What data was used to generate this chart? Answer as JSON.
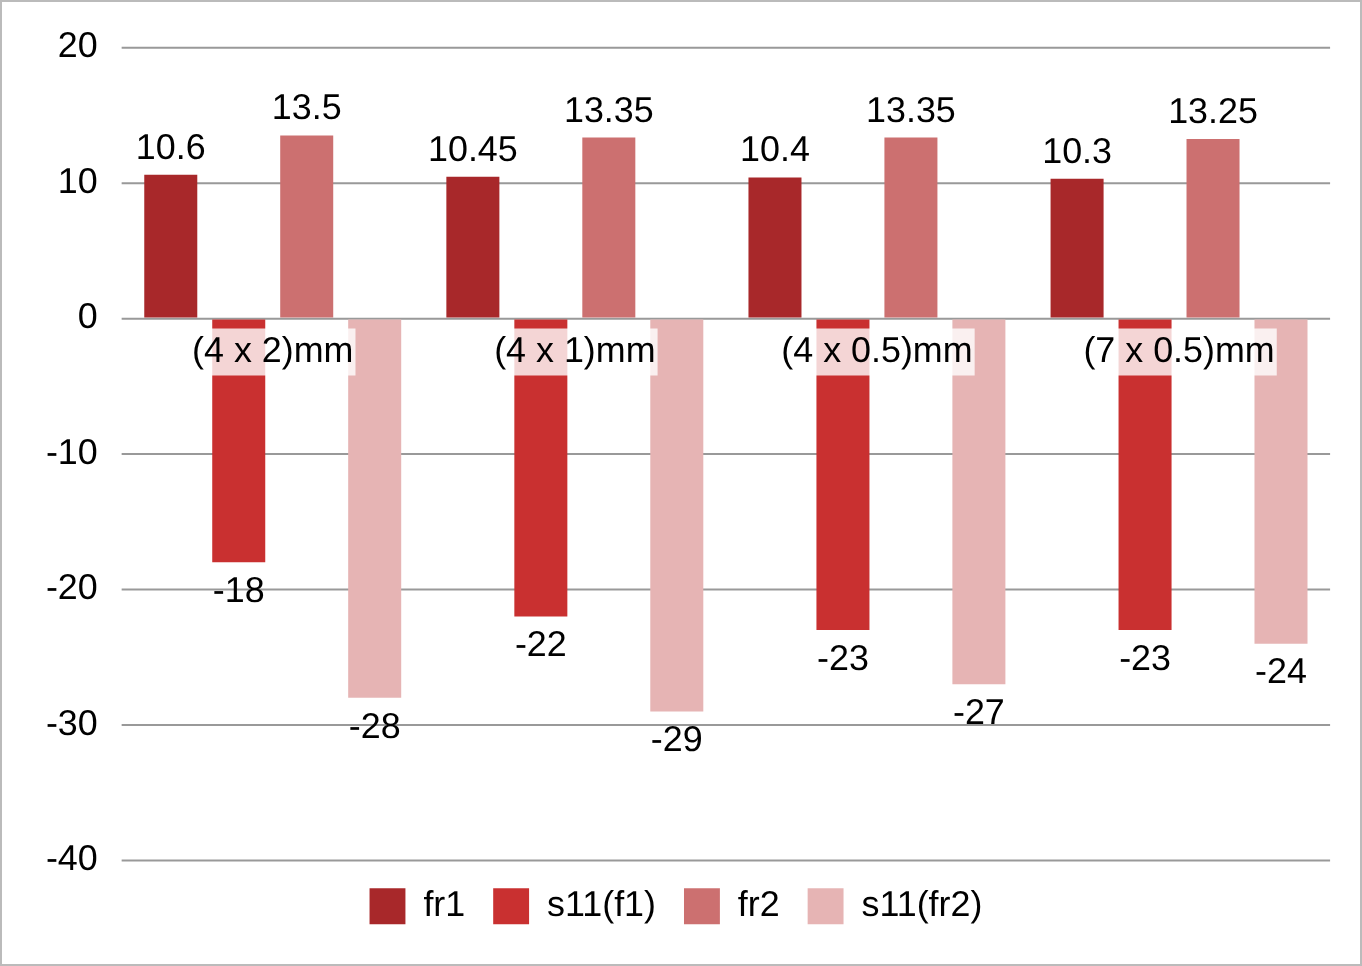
{
  "chart_data": {
    "type": "bar",
    "categories": [
      "(4 x 2)mm",
      "(4 x 1)mm",
      "(4 x 0.5)mm",
      "(7 x 0.5)mm"
    ],
    "series": [
      {
        "name": "fr1",
        "color": "#a8282a",
        "values": [
          10.6,
          10.45,
          10.4,
          10.3
        ]
      },
      {
        "name": "s11(f1)",
        "color": "#c93030",
        "values": [
          -18,
          -22,
          -23,
          -23
        ]
      },
      {
        "name": "fr2",
        "color": "#cc7070",
        "values": [
          13.5,
          13.35,
          13.35,
          13.25
        ]
      },
      {
        "name": "s11(fr2)",
        "color": "#e6b4b4",
        "values": [
          -28,
          -29,
          -27,
          -24
        ]
      }
    ],
    "ylim": [
      -40,
      20
    ],
    "yticks": [
      -40,
      -30,
      -20,
      -10,
      0,
      10,
      20
    ],
    "grid": "y",
    "legend": "bottom",
    "data_labels": true
  }
}
